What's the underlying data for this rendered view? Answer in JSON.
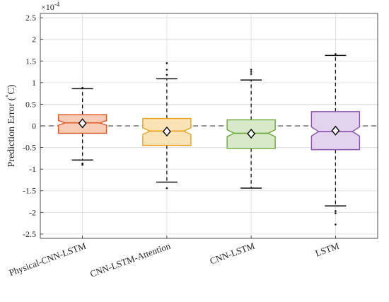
{
  "chart_data": {
    "type": "box",
    "ylabel": "Prediction Error (°C)",
    "ylabel_parts": {
      "main": "Prediction Error (",
      "degree": "°",
      "unit": "C)"
    },
    "y_exponent": {
      "base": "×10",
      "power": "-4"
    },
    "ylim": [
      -2.6,
      2.6
    ],
    "yticks": [
      2.5,
      2,
      1.5,
      1,
      0.5,
      0,
      -0.5,
      -1,
      -1.5,
      -2,
      -2.5
    ],
    "ytick_labels": [
      "2.5",
      "2",
      "1.5",
      "1",
      "0.5",
      "0",
      "-0.5",
      "-1",
      "-1.5",
      "-2",
      "-2.5"
    ],
    "grid": true,
    "reference_line": 0,
    "categories": [
      "Physical-CNN-LSTM",
      "CNN-LSTM-Attention",
      "CNN-LSTM",
      "LSTM"
    ],
    "series": [
      {
        "q1": -0.17,
        "median": 0.07,
        "q3": 0.26,
        "mean": 0.06,
        "whisker_low": -0.79,
        "whisker_high": 0.86,
        "outliers": [
          -0.87,
          -0.9,
          0.88
        ],
        "edge_color": "#e05a2a",
        "fill_color": "#f7cdb8"
      },
      {
        "q1": -0.45,
        "median": -0.12,
        "q3": 0.17,
        "mean": -0.13,
        "whisker_low": -1.3,
        "whisker_high": 1.09,
        "outliers": [
          -1.44,
          1.18,
          1.3,
          1.45
        ],
        "edge_color": "#f0a020",
        "fill_color": "#fbe3b8"
      },
      {
        "q1": -0.52,
        "median": -0.17,
        "q3": 0.14,
        "mean": -0.18,
        "whisker_low": -1.44,
        "whisker_high": 1.06,
        "outliers": [
          1.2,
          1.25,
          1.3
        ],
        "edge_color": "#6aaa3a",
        "fill_color": "#d7e9c8"
      },
      {
        "q1": -0.55,
        "median": -0.13,
        "q3": 0.33,
        "mean": -0.11,
        "whisker_low": -1.85,
        "whisker_high": 1.63,
        "outliers": [
          -1.97,
          -2.02,
          -2.28,
          1.66
        ],
        "edge_color": "#8a50b0",
        "fill_color": "#e2d3ee"
      }
    ]
  }
}
